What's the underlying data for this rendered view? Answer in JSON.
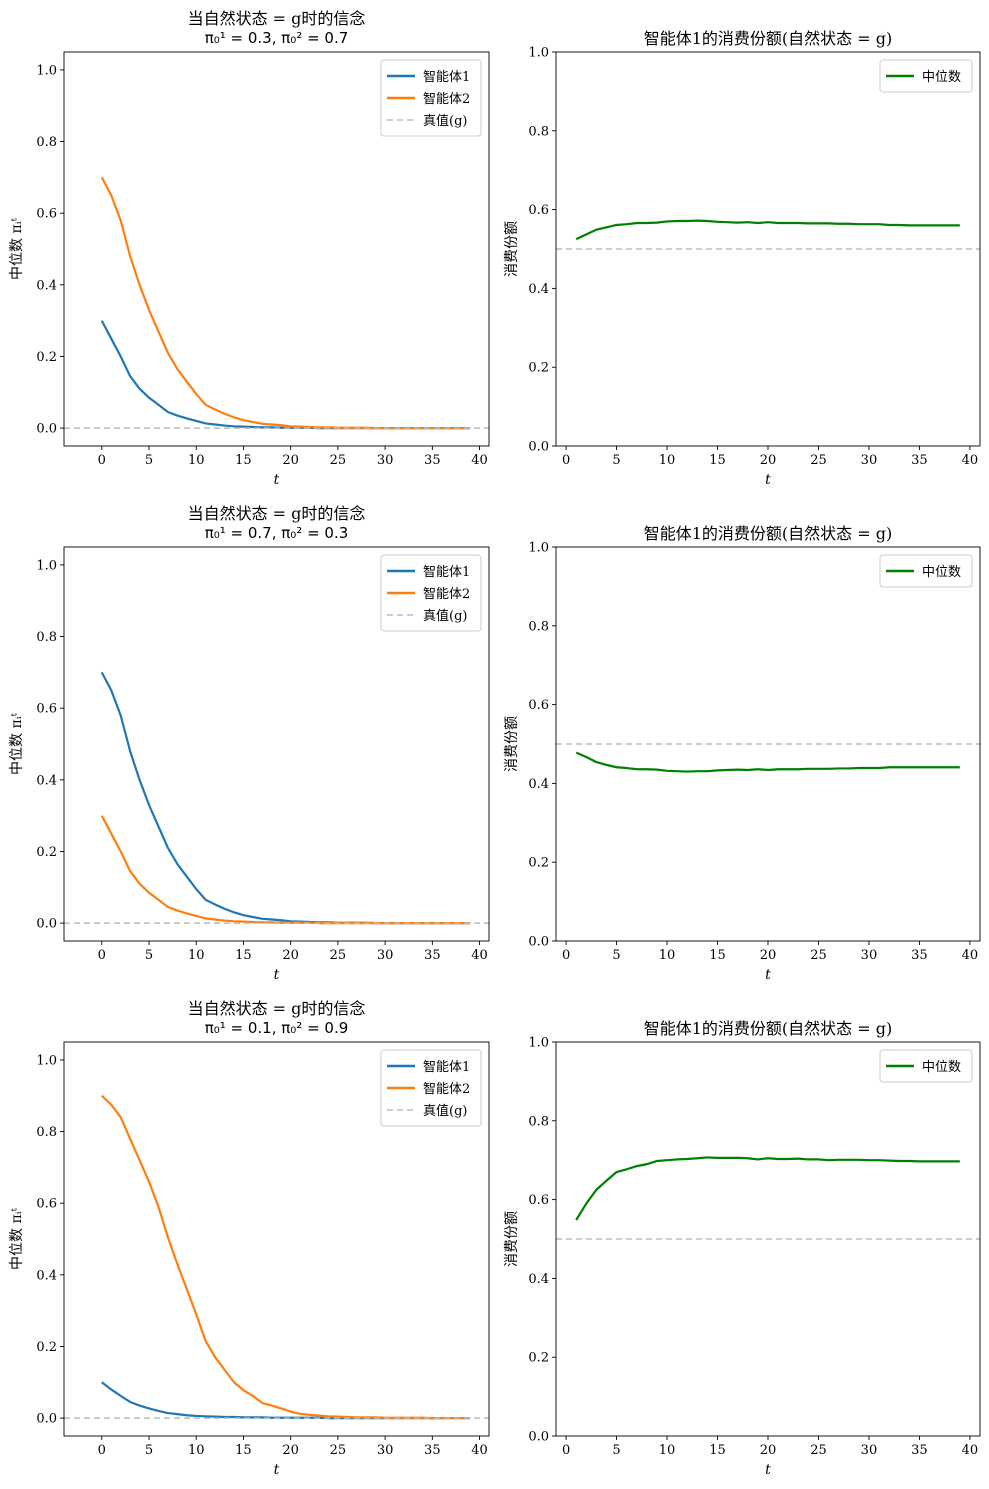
{
  "chart_data": [
    {
      "type": "line",
      "title": "当自然状态 = g时的信念",
      "subtitle": "π₀¹ = 0.3, π₀² = 0.7",
      "xlabel": "t",
      "ylabel": "中位数 πᵢᵗ",
      "xlim": [
        -4,
        41
      ],
      "ylim": [
        -0.05,
        1.05
      ],
      "xticks": [
        0,
        5,
        10,
        15,
        20,
        25,
        30,
        35,
        40
      ],
      "yticks": [
        0.0,
        0.2,
        0.4,
        0.6,
        0.8,
        1.0
      ],
      "legend": "top-right",
      "series": [
        {
          "name": "智能体1",
          "color": "#1f77b4",
          "style": "solid",
          "x": [
            0,
            1,
            2,
            3,
            4,
            5,
            6,
            7,
            8,
            9,
            10,
            11,
            12,
            13,
            14,
            15,
            16,
            17,
            18,
            19,
            20,
            21,
            22,
            23,
            24,
            25,
            26,
            27,
            28,
            29,
            30,
            31,
            32,
            33,
            34,
            35,
            36,
            37,
            38,
            39
          ],
          "y": [
            0.3,
            0.25,
            0.2,
            0.145,
            0.11,
            0.085,
            0.065,
            0.045,
            0.035,
            0.027,
            0.02,
            0.013,
            0.01,
            0.007,
            0.005,
            0.004,
            0.003,
            0.002,
            0.002,
            0.001,
            0.001,
            0.001,
            0.001,
            0,
            0,
            0,
            0,
            0,
            0,
            0,
            0,
            0,
            0,
            0,
            0,
            0,
            0,
            0,
            0,
            0
          ]
        },
        {
          "name": "智能体2",
          "color": "#ff7f0e",
          "style": "solid",
          "x": [
            0,
            1,
            2,
            3,
            4,
            5,
            6,
            7,
            8,
            9,
            10,
            11,
            12,
            13,
            14,
            15,
            16,
            17,
            18,
            19,
            20,
            21,
            22,
            23,
            24,
            25,
            26,
            27,
            28,
            29,
            30,
            31,
            32,
            33,
            34,
            35,
            36,
            37,
            38,
            39
          ],
          "y": [
            0.7,
            0.65,
            0.58,
            0.48,
            0.4,
            0.33,
            0.27,
            0.21,
            0.165,
            0.13,
            0.095,
            0.065,
            0.052,
            0.04,
            0.03,
            0.022,
            0.017,
            0.012,
            0.01,
            0.008,
            0.005,
            0.004,
            0.003,
            0.002,
            0.002,
            0.001,
            0.001,
            0.001,
            0.001,
            0,
            0,
            0,
            0,
            0,
            0,
            0,
            0,
            0,
            0,
            0
          ]
        },
        {
          "name": "真值(g)",
          "color": "#bbbbbb",
          "style": "dashed",
          "hline": 0.0
        }
      ]
    },
    {
      "type": "line",
      "title": "智能体1的消费份额(自然状态 = g)",
      "xlabel": "t",
      "ylabel": "消费份额",
      "xlim": [
        -1,
        41
      ],
      "ylim": [
        0.0,
        1.0
      ],
      "xticks": [
        0,
        5,
        10,
        15,
        20,
        25,
        30,
        35,
        40
      ],
      "yticks": [
        0.0,
        0.2,
        0.4,
        0.6,
        0.8,
        1.0
      ],
      "legend": "top-right",
      "series": [
        {
          "name": "中位数",
          "color": "#008000",
          "style": "solid",
          "x": [
            1,
            2,
            3,
            4,
            5,
            6,
            7,
            8,
            9,
            10,
            11,
            12,
            13,
            14,
            15,
            16,
            17,
            18,
            19,
            20,
            21,
            22,
            23,
            24,
            25,
            26,
            27,
            28,
            29,
            30,
            31,
            32,
            33,
            34,
            35,
            36,
            37,
            38,
            39
          ],
          "y": [
            0.525,
            0.537,
            0.549,
            0.555,
            0.561,
            0.563,
            0.566,
            0.566,
            0.567,
            0.57,
            0.571,
            0.571,
            0.572,
            0.571,
            0.569,
            0.568,
            0.567,
            0.568,
            0.566,
            0.568,
            0.566,
            0.566,
            0.566,
            0.565,
            0.565,
            0.565,
            0.564,
            0.564,
            0.563,
            0.563,
            0.563,
            0.561,
            0.561,
            0.56,
            0.56,
            0.56,
            0.56,
            0.56,
            0.56
          ]
        },
        {
          "name": "",
          "color": "#bbbbbb",
          "style": "dashed",
          "hline": 0.5
        }
      ]
    },
    {
      "type": "line",
      "title": "当自然状态 = g时的信念",
      "subtitle": "π₀¹ = 0.7, π₀² = 0.3",
      "xlabel": "t",
      "ylabel": "中位数 πᵢᵗ",
      "xlim": [
        -4,
        41
      ],
      "ylim": [
        -0.05,
        1.05
      ],
      "xticks": [
        0,
        5,
        10,
        15,
        20,
        25,
        30,
        35,
        40
      ],
      "yticks": [
        0.0,
        0.2,
        0.4,
        0.6,
        0.8,
        1.0
      ],
      "legend": "top-right",
      "series": [
        {
          "name": "智能体1",
          "color": "#1f77b4",
          "style": "solid",
          "x": [
            0,
            1,
            2,
            3,
            4,
            5,
            6,
            7,
            8,
            9,
            10,
            11,
            12,
            13,
            14,
            15,
            16,
            17,
            18,
            19,
            20,
            21,
            22,
            23,
            24,
            25,
            26,
            27,
            28,
            29,
            30,
            31,
            32,
            33,
            34,
            35,
            36,
            37,
            38,
            39
          ],
          "y": [
            0.7,
            0.65,
            0.58,
            0.48,
            0.4,
            0.33,
            0.27,
            0.21,
            0.165,
            0.13,
            0.095,
            0.065,
            0.052,
            0.04,
            0.03,
            0.022,
            0.017,
            0.012,
            0.01,
            0.008,
            0.005,
            0.004,
            0.003,
            0.002,
            0.002,
            0.001,
            0.001,
            0.001,
            0.001,
            0,
            0,
            0,
            0,
            0,
            0,
            0,
            0,
            0,
            0,
            0
          ]
        },
        {
          "name": "智能体2",
          "color": "#ff7f0e",
          "style": "solid",
          "x": [
            0,
            1,
            2,
            3,
            4,
            5,
            6,
            7,
            8,
            9,
            10,
            11,
            12,
            13,
            14,
            15,
            16,
            17,
            18,
            19,
            20,
            21,
            22,
            23,
            24,
            25,
            26,
            27,
            28,
            29,
            30,
            31,
            32,
            33,
            34,
            35,
            36,
            37,
            38,
            39
          ],
          "y": [
            0.3,
            0.25,
            0.2,
            0.145,
            0.11,
            0.085,
            0.065,
            0.045,
            0.035,
            0.027,
            0.02,
            0.013,
            0.01,
            0.007,
            0.005,
            0.004,
            0.003,
            0.002,
            0.002,
            0.001,
            0.001,
            0.001,
            0.001,
            0,
            0,
            0,
            0,
            0,
            0,
            0,
            0,
            0,
            0,
            0,
            0,
            0,
            0,
            0,
            0,
            0
          ]
        },
        {
          "name": "真值(g)",
          "color": "#bbbbbb",
          "style": "dashed",
          "hline": 0.0
        }
      ]
    },
    {
      "type": "line",
      "title": "智能体1的消费份额(自然状态 = g)",
      "xlabel": "t",
      "ylabel": "消费份额",
      "xlim": [
        -1,
        41
      ],
      "ylim": [
        0.0,
        1.0
      ],
      "xticks": [
        0,
        5,
        10,
        15,
        20,
        25,
        30,
        35,
        40
      ],
      "yticks": [
        0.0,
        0.2,
        0.4,
        0.6,
        0.8,
        1.0
      ],
      "legend": "top-right",
      "series": [
        {
          "name": "中位数",
          "color": "#008000",
          "style": "solid",
          "x": [
            1,
            2,
            3,
            4,
            5,
            6,
            7,
            8,
            9,
            10,
            11,
            12,
            13,
            14,
            15,
            16,
            17,
            18,
            19,
            20,
            21,
            22,
            23,
            24,
            25,
            26,
            27,
            28,
            29,
            30,
            31,
            32,
            33,
            34,
            35,
            36,
            37,
            38,
            39
          ],
          "y": [
            0.478,
            0.467,
            0.454,
            0.447,
            0.441,
            0.439,
            0.436,
            0.436,
            0.435,
            0.432,
            0.431,
            0.43,
            0.431,
            0.431,
            0.433,
            0.434,
            0.435,
            0.434,
            0.436,
            0.434,
            0.436,
            0.436,
            0.436,
            0.437,
            0.437,
            0.437,
            0.438,
            0.438,
            0.439,
            0.439,
            0.439,
            0.441,
            0.441,
            0.441,
            0.441,
            0.441,
            0.441,
            0.441,
            0.441
          ]
        },
        {
          "name": "",
          "color": "#bbbbbb",
          "style": "dashed",
          "hline": 0.5
        }
      ]
    },
    {
      "type": "line",
      "title": "当自然状态 = g时的信念",
      "subtitle": "π₀¹ = 0.1, π₀² = 0.9",
      "xlabel": "t",
      "ylabel": "中位数 πᵢᵗ",
      "xlim": [
        -4,
        41
      ],
      "ylim": [
        -0.05,
        1.05
      ],
      "xticks": [
        0,
        5,
        10,
        15,
        20,
        25,
        30,
        35,
        40
      ],
      "yticks": [
        0.0,
        0.2,
        0.4,
        0.6,
        0.8,
        1.0
      ],
      "legend": "top-right",
      "series": [
        {
          "name": "智能体1",
          "color": "#1f77b4",
          "style": "solid",
          "x": [
            0,
            1,
            2,
            3,
            4,
            5,
            6,
            7,
            8,
            9,
            10,
            11,
            12,
            13,
            14,
            15,
            16,
            17,
            18,
            19,
            20,
            21,
            22,
            23,
            24,
            25,
            26,
            27,
            28,
            29,
            30,
            31,
            32,
            33,
            34,
            35,
            36,
            37,
            38,
            39
          ],
          "y": [
            0.1,
            0.08,
            0.062,
            0.045,
            0.035,
            0.027,
            0.02,
            0.014,
            0.011,
            0.008,
            0.006,
            0.005,
            0.004,
            0.003,
            0.003,
            0.002,
            0.002,
            0.002,
            0.001,
            0.001,
            0.001,
            0.001,
            0.001,
            0.001,
            0,
            0,
            0,
            0,
            0,
            0,
            0,
            0,
            0,
            0,
            0,
            0,
            0,
            0,
            0,
            0
          ]
        },
        {
          "name": "智能体2",
          "color": "#ff7f0e",
          "style": "solid",
          "x": [
            0,
            1,
            2,
            3,
            4,
            5,
            6,
            7,
            8,
            9,
            10,
            11,
            12,
            13,
            14,
            15,
            16,
            17,
            18,
            19,
            20,
            21,
            22,
            23,
            24,
            25,
            26,
            27,
            28,
            29,
            30,
            31,
            32,
            33,
            34,
            35,
            36,
            37,
            38,
            39
          ],
          "y": [
            0.9,
            0.875,
            0.84,
            0.78,
            0.72,
            0.66,
            0.59,
            0.505,
            0.43,
            0.36,
            0.29,
            0.215,
            0.17,
            0.135,
            0.1,
            0.078,
            0.062,
            0.042,
            0.035,
            0.027,
            0.018,
            0.012,
            0.009,
            0.007,
            0.005,
            0.004,
            0.003,
            0.002,
            0.002,
            0.002,
            0.001,
            0.001,
            0.001,
            0.001,
            0.001,
            0,
            0,
            0,
            0,
            0
          ]
        },
        {
          "name": "真值(g)",
          "color": "#bbbbbb",
          "style": "dashed",
          "hline": 0.0
        }
      ]
    },
    {
      "type": "line",
      "title": "智能体1的消费份额(自然状态 = g)",
      "xlabel": "t",
      "ylabel": "消费份额",
      "xlim": [
        -1,
        41
      ],
      "ylim": [
        0.0,
        1.0
      ],
      "xticks": [
        0,
        5,
        10,
        15,
        20,
        25,
        30,
        35,
        40
      ],
      "yticks": [
        0.0,
        0.2,
        0.4,
        0.6,
        0.8,
        1.0
      ],
      "legend": "top-right",
      "series": [
        {
          "name": "中位数",
          "color": "#008000",
          "style": "solid",
          "x": [
            1,
            2,
            3,
            4,
            5,
            6,
            7,
            8,
            9,
            10,
            11,
            12,
            13,
            14,
            15,
            16,
            17,
            18,
            19,
            20,
            21,
            22,
            23,
            24,
            25,
            26,
            27,
            28,
            29,
            30,
            31,
            32,
            33,
            34,
            35,
            36,
            37,
            38,
            39
          ],
          "y": [
            0.548,
            0.59,
            0.625,
            0.648,
            0.67,
            0.677,
            0.685,
            0.69,
            0.698,
            0.7,
            0.702,
            0.703,
            0.705,
            0.707,
            0.706,
            0.706,
            0.706,
            0.705,
            0.702,
            0.705,
            0.703,
            0.703,
            0.704,
            0.702,
            0.702,
            0.7,
            0.701,
            0.701,
            0.701,
            0.7,
            0.7,
            0.699,
            0.698,
            0.698,
            0.697,
            0.697,
            0.697,
            0.697,
            0.697
          ]
        },
        {
          "name": "",
          "color": "#bbbbbb",
          "style": "dashed",
          "hline": 0.5
        }
      ]
    }
  ]
}
